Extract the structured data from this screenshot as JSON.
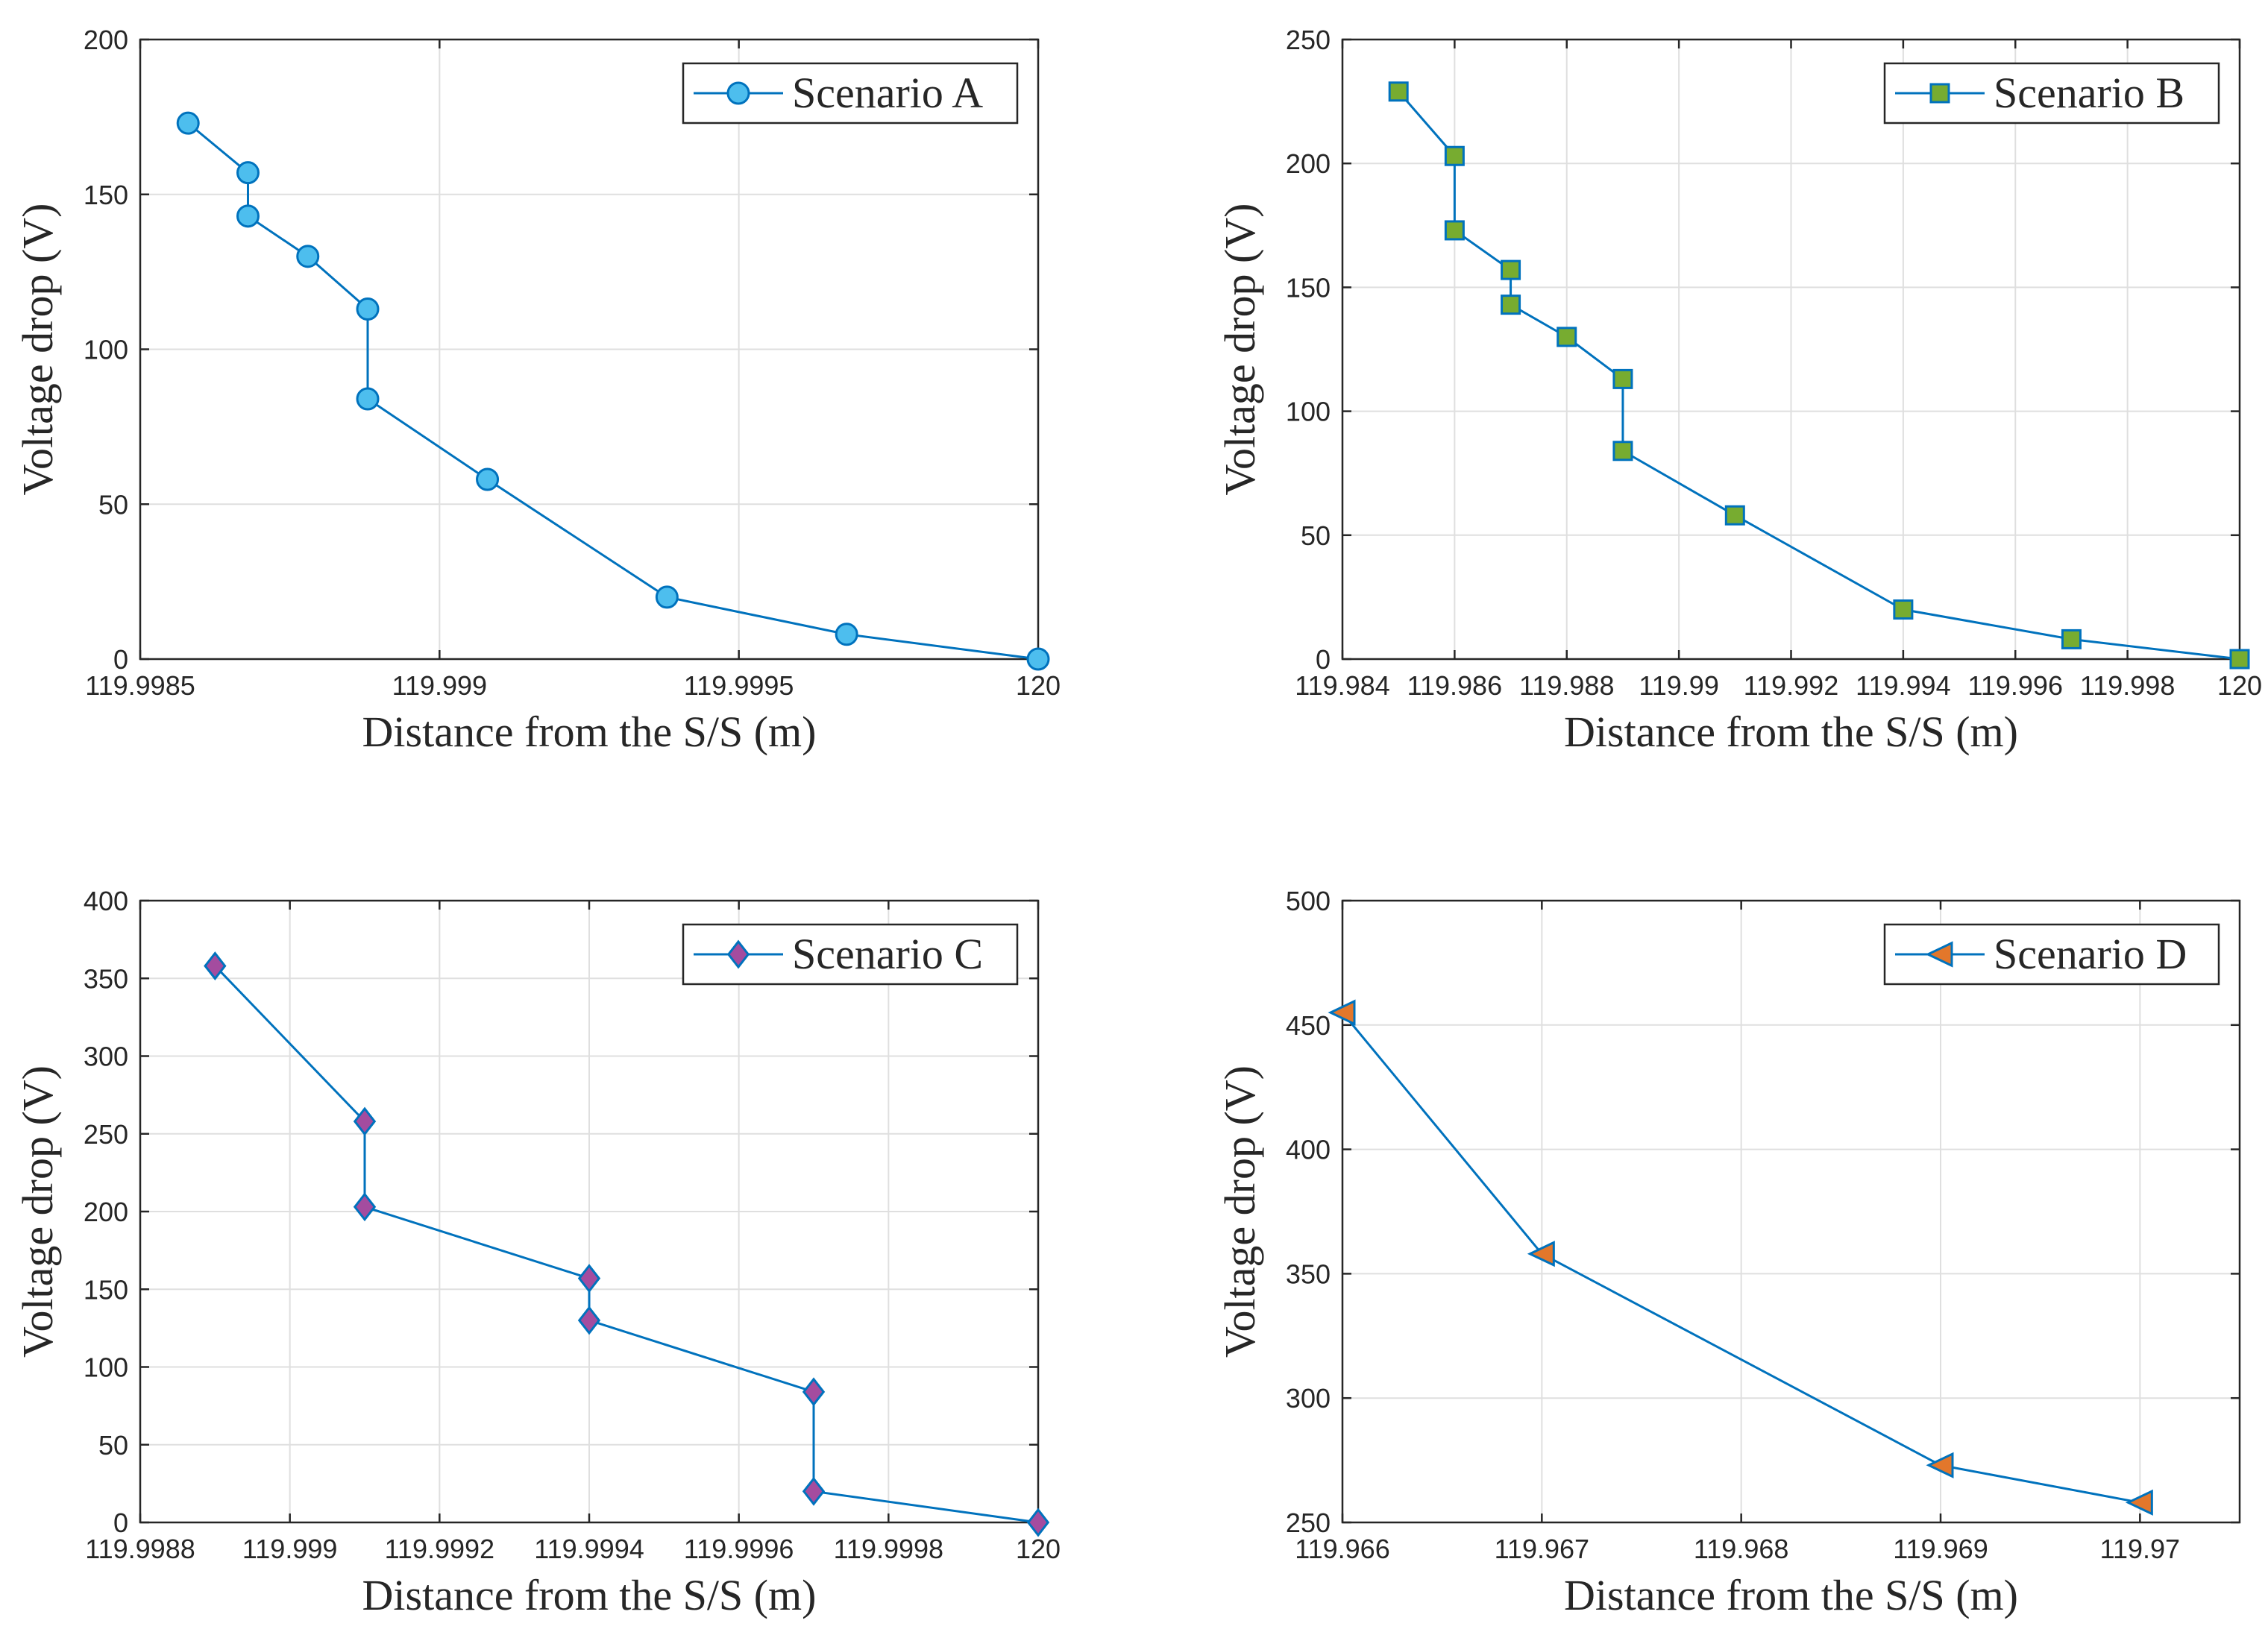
{
  "chart_data": [
    {
      "type": "line",
      "legend": "Scenario A",
      "legend_position": "top-right",
      "marker": "circle",
      "marker_color": "#4dbeee",
      "line_color": "#0072bd",
      "xlabel": "Distance from the S/S (m)",
      "ylabel": "Voltage drop (V)",
      "xlim": [
        119.9985,
        120
      ],
      "ylim": [
        0,
        200
      ],
      "xticks": [
        119.9985,
        119.999,
        119.9995,
        120
      ],
      "xtick_labels": [
        "119.9985",
        "119.999",
        "119.9995",
        "120"
      ],
      "yticks": [
        0,
        50,
        100,
        150,
        200
      ],
      "ytick_labels": [
        "0",
        "50",
        "100",
        "150",
        "200"
      ],
      "grid": true,
      "x": [
        119.99858,
        119.99868,
        119.99868,
        119.99878,
        119.99888,
        119.99888,
        119.99908,
        119.99938,
        119.99968,
        120
      ],
      "y": [
        173,
        157,
        143,
        130,
        113,
        84,
        58,
        20,
        8,
        0
      ]
    },
    {
      "type": "line",
      "legend": "Scenario B",
      "legend_position": "top-right",
      "marker": "square",
      "marker_color": "#77ac30",
      "line_color": "#0072bd",
      "xlabel": "Distance from the S/S (m)",
      "ylabel": "Voltage drop (V)",
      "xlim": [
        119.984,
        120
      ],
      "ylim": [
        0,
        250
      ],
      "xticks": [
        119.984,
        119.986,
        119.988,
        119.99,
        119.992,
        119.994,
        119.996,
        119.998,
        120
      ],
      "xtick_labels": [
        "119.984",
        "119.986",
        "119.988",
        "119.99",
        "119.992",
        "119.994",
        "119.996",
        "119.998",
        "120"
      ],
      "yticks": [
        0,
        50,
        100,
        150,
        200,
        250
      ],
      "ytick_labels": [
        "0",
        "50",
        "100",
        "150",
        "200",
        "250"
      ],
      "grid": true,
      "x": [
        119.985,
        119.986,
        119.986,
        119.987,
        119.987,
        119.988,
        119.989,
        119.989,
        119.991,
        119.994,
        119.997,
        120
      ],
      "y": [
        229,
        203,
        173,
        157,
        143,
        130,
        113,
        84,
        58,
        20,
        8,
        0
      ]
    },
    {
      "type": "line",
      "legend": "Scenario C",
      "legend_position": "top-right",
      "marker": "diamond",
      "marker_color": "#a44c9f",
      "line_color": "#0072bd",
      "xlabel": "Distance from the S/S (m)",
      "ylabel": "Voltage drop (V)",
      "xlim": [
        119.9988,
        120
      ],
      "ylim": [
        0,
        400
      ],
      "xticks": [
        119.9988,
        119.999,
        119.9992,
        119.9994,
        119.9996,
        119.9998,
        120
      ],
      "xtick_labels": [
        "119.9988",
        "119.999",
        "119.9992",
        "119.9994",
        "119.9996",
        "119.9998",
        "120"
      ],
      "yticks": [
        0,
        50,
        100,
        150,
        200,
        250,
        300,
        350,
        400
      ],
      "ytick_labels": [
        "0",
        "50",
        "100",
        "150",
        "200",
        "250",
        "300",
        "350",
        "400"
      ],
      "grid": true,
      "x": [
        119.9989,
        119.9991,
        119.9991,
        119.9994,
        119.9994,
        119.9997,
        119.9997,
        120
      ],
      "y": [
        358,
        258,
        203,
        157,
        130,
        84,
        20,
        0
      ]
    },
    {
      "type": "line",
      "legend": "Scenario D",
      "legend_position": "top-right",
      "marker": "triangle-left",
      "marker_color": "#e3772b",
      "line_color": "#0072bd",
      "xlabel": "Distance from the S/S (m)",
      "ylabel": "Voltage drop (V)",
      "xlim": [
        119.966,
        119.9705
      ],
      "ylim": [
        250,
        500
      ],
      "xticks": [
        119.966,
        119.967,
        119.968,
        119.969,
        119.97
      ],
      "xtick_labels": [
        "119.966",
        "119.967",
        "119.968",
        "119.969",
        "119.97"
      ],
      "yticks": [
        250,
        300,
        350,
        400,
        450,
        500
      ],
      "ytick_labels": [
        "250",
        "300",
        "350",
        "400",
        "450",
        "500"
      ],
      "grid": true,
      "x": [
        119.966,
        119.967,
        119.969,
        119.97
      ],
      "y": [
        455,
        358,
        273,
        258
      ]
    }
  ]
}
